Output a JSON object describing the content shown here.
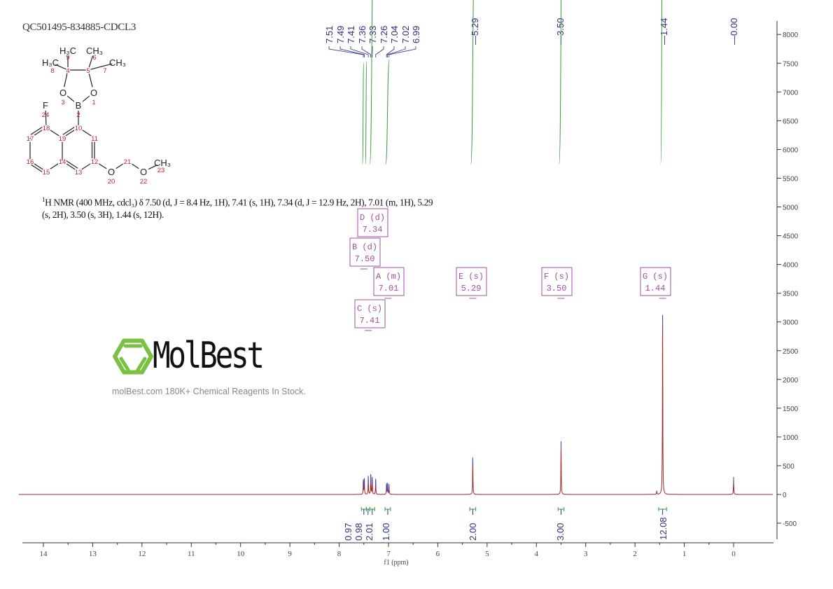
{
  "header": {
    "sample_id": "QC501495-834885-CDCL3"
  },
  "nmr_description": {
    "nucleus_sup": "1",
    "text": "H NMR (400 MHz, cdcl₃) δ 7.50 (d, J = 8.4 Hz, 1H), 7.41 (s, 1H), 7.34 (d, J = 12.9 Hz, 2H), 7.01 (m, 1H), 5.29 (s, 2H), 3.50 (s, 3H), 1.44 (s, 12H)."
  },
  "watermark": {
    "name": "MolBest",
    "tagline": "molBest.com 180K+ Chemical Reagents In Stock."
  },
  "structure": {
    "atoms": [
      {
        "id": "h3c-9",
        "label": "H₃C",
        "num": "9"
      },
      {
        "id": "h3c-8",
        "label": "H₃C",
        "num": "8"
      },
      {
        "id": "ch3-6",
        "label": "CH₃",
        "num": "6"
      },
      {
        "id": "ch3-7",
        "label": "CH₃",
        "num": "7"
      },
      {
        "id": "c4",
        "label": "",
        "num": "4"
      },
      {
        "id": "c5",
        "label": "",
        "num": "5"
      },
      {
        "id": "o3",
        "label": "O",
        "num": "3"
      },
      {
        "id": "o1",
        "label": "O",
        "num": "1"
      },
      {
        "id": "b2",
        "label": "B",
        "num": "2"
      },
      {
        "id": "f24",
        "label": "F",
        "num": "24"
      },
      {
        "id": "c10",
        "label": "",
        "num": "10"
      },
      {
        "id": "c18",
        "label": "",
        "num": "18"
      },
      {
        "id": "c19",
        "label": "",
        "num": "19"
      },
      {
        "id": "c11",
        "label": "",
        "num": "11"
      },
      {
        "id": "c17",
        "label": "",
        "num": "17"
      },
      {
        "id": "c16",
        "label": "",
        "num": "16"
      },
      {
        "id": "c14",
        "label": "",
        "num": "14"
      },
      {
        "id": "c12",
        "label": "",
        "num": "12"
      },
      {
        "id": "c15",
        "label": "",
        "num": "15"
      },
      {
        "id": "c13",
        "label": "",
        "num": "13"
      },
      {
        "id": "o20",
        "label": "O",
        "num": "20"
      },
      {
        "id": "c21",
        "label": "",
        "num": "21"
      },
      {
        "id": "o22",
        "label": "O",
        "num": "22"
      },
      {
        "id": "ch3-23",
        "label": "CH₃",
        "num": "23"
      }
    ]
  },
  "chart_data": {
    "type": "line",
    "title": "",
    "xlabel": "f1 (ppm)",
    "ylabel": "",
    "xlim": [
      14.5,
      -0.8
    ],
    "ylim": [
      -700,
      8300
    ],
    "x_ticks": [
      "14",
      "13",
      "12",
      "11",
      "10",
      "9",
      "8",
      "7",
      "6",
      "5",
      "4",
      "3",
      "2",
      "1",
      "0"
    ],
    "y_ticks": [
      "8000",
      "7500",
      "7000",
      "6500",
      "6000",
      "5500",
      "5000",
      "4500",
      "4000",
      "3500",
      "3000",
      "2500",
      "2000",
      "1500",
      "1000",
      "500",
      "0",
      "-500"
    ],
    "peak_labels": [
      "7.51",
      "7.49",
      "7.41",
      "7.36",
      "7.33",
      "7.26",
      "7.04",
      "7.02",
      "6.99",
      "5.29",
      "3.50",
      "1.44",
      "0.00"
    ],
    "peaks": [
      {
        "ppm": 7.51,
        "height": 240
      },
      {
        "ppm": 7.49,
        "height": 260
      },
      {
        "ppm": 7.41,
        "height": 300
      },
      {
        "ppm": 7.36,
        "height": 330
      },
      {
        "ppm": 7.33,
        "height": 280
      },
      {
        "ppm": 7.26,
        "height": 250
      },
      {
        "ppm": 7.04,
        "height": 170
      },
      {
        "ppm": 7.02,
        "height": 180
      },
      {
        "ppm": 6.99,
        "height": 160
      },
      {
        "ppm": 5.29,
        "height": 620
      },
      {
        "ppm": 3.5,
        "height": 900
      },
      {
        "ppm": 1.56,
        "height": 60
      },
      {
        "ppm": 1.44,
        "height": 3100
      },
      {
        "ppm": 0.0,
        "height": 280
      }
    ],
    "multiplets": [
      {
        "letter": "D",
        "type": "d",
        "shift": "7.34"
      },
      {
        "letter": "B",
        "type": "d",
        "shift": "7.50"
      },
      {
        "letter": "A",
        "type": "m",
        "shift": "7.01"
      },
      {
        "letter": "C",
        "type": "s",
        "shift": "7.41"
      },
      {
        "letter": "E",
        "type": "s",
        "shift": "5.29"
      },
      {
        "letter": "F",
        "type": "s",
        "shift": "3.50"
      },
      {
        "letter": "G",
        "type": "s",
        "shift": "1.44"
      }
    ],
    "integrals": [
      {
        "from": 7.55,
        "to": 7.45,
        "value": "0.97"
      },
      {
        "from": 7.45,
        "to": 7.38,
        "value": "0.98"
      },
      {
        "from": 7.38,
        "to": 7.28,
        "value": "2.01"
      },
      {
        "from": 7.07,
        "to": 6.96,
        "value": "1.00"
      },
      {
        "from": 5.35,
        "to": 5.23,
        "value": "2.00"
      },
      {
        "from": 3.56,
        "to": 3.44,
        "value": "3.00"
      },
      {
        "from": 1.52,
        "to": 1.36,
        "value": "12.08"
      }
    ],
    "colors": {
      "spectrum": "#a0282d",
      "integral": "#3a9a3a",
      "peak_label": "#2b2f8a",
      "multiplet_box": "#a050a0",
      "logo": "#7ac143"
    }
  }
}
